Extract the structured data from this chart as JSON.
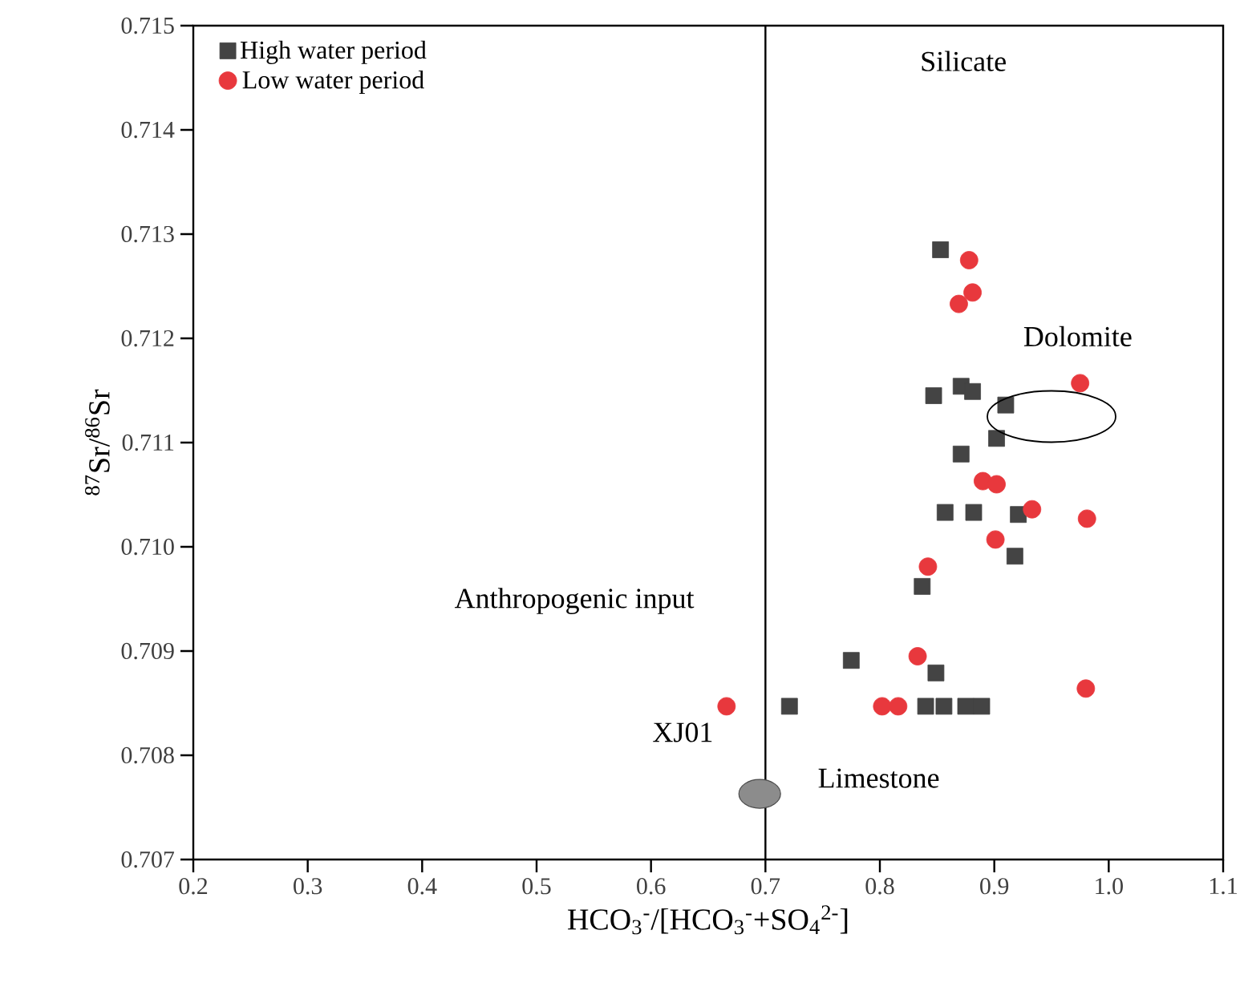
{
  "chart_data": {
    "type": "scatter",
    "xlabel": "HCO$_{3}$$^{-}$/[HCO$_{3}$$^{-}$+SO$_{4}$$^{2-}$]",
    "ylabel": "$^{87}$Sr/$^{86}$Sr",
    "xlim": [
      0.2,
      1.1
    ],
    "xticks": [
      0.2,
      0.3,
      0.4,
      0.5,
      0.6,
      0.7,
      0.8,
      0.9,
      {
        "value": 1.0,
        "label": "1.0"
      },
      1.1
    ],
    "ylim": [
      0.707,
      0.715
    ],
    "yticks": [
      0.707,
      0.708,
      0.709,
      {
        "value": 0.71,
        "label": "0.710"
      },
      0.711,
      0.712,
      0.713,
      0.714,
      0.715
    ],
    "legend": "top left",
    "ref_lines": [
      {
        "axis": "x",
        "value": 0.7,
        "color": "#000000"
      }
    ],
    "annotations": [
      "Silicate",
      "Dolomite",
      "Anthropogenic input",
      {
        "text": "XJ01",
        "x": 0.666,
        "y": 0.70847
      },
      "Limestone"
    ],
    "series": [
      {
        "name": "High water period",
        "color": "#444444",
        "marker": "square",
        "x": [
          0.853,
          0.847,
          0.871,
          0.881,
          0.91,
          0.902,
          0.871,
          0.857,
          0.882,
          0.921,
          0.918,
          0.837,
          0.775,
          0.849,
          0.84,
          0.856,
          0.875,
          0.889,
          0.721
        ],
        "values": [
          0.71285,
          0.71145,
          0.71154,
          0.71149,
          0.71136,
          0.71104,
          0.71089,
          0.71033,
          0.71033,
          0.71031,
          0.70991,
          0.70962,
          0.70891,
          0.70879,
          0.70847,
          0.70847,
          0.70847,
          0.70847,
          0.70847
        ]
      },
      {
        "name": "Low water period",
        "color": "#e8383d",
        "marker": "circle",
        "x": [
          0.878,
          0.881,
          0.869,
          0.975,
          0.89,
          0.902,
          0.933,
          0.981,
          0.901,
          0.842,
          0.833,
          0.802,
          0.816,
          0.98,
          0.666
        ],
        "values": [
          0.71275,
          0.71244,
          0.71233,
          0.71157,
          0.71063,
          0.7106,
          0.71036,
          0.71027,
          0.71007,
          0.70981,
          0.70895,
          0.70847,
          0.70847,
          0.70864,
          0.70847
        ]
      }
    ]
  }
}
